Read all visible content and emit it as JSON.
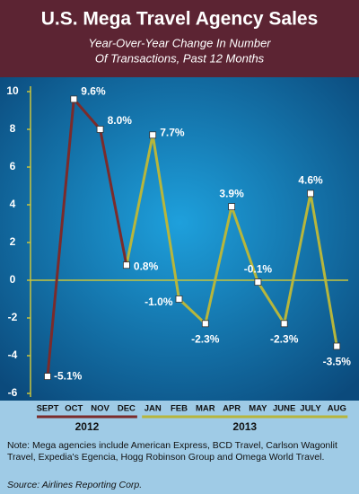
{
  "chart_data": {
    "type": "line",
    "title": "U.S. Mega Travel Agency Sales",
    "subtitle": [
      "Year-Over-Year Change In Number",
      "Of Transactions, Past 12 Months"
    ],
    "categories": [
      "SEPT",
      "OCT",
      "NOV",
      "DEC",
      "JAN",
      "FEB",
      "MAR",
      "APR",
      "MAY",
      "JUNE",
      "JULY",
      "AUG"
    ],
    "series": [
      {
        "name": "2012",
        "color": "#7b2b2b",
        "values": [
          -5.1,
          9.6,
          8.0,
          0.8,
          null,
          null,
          null,
          null,
          null,
          null,
          null,
          null
        ],
        "value_labels": [
          "-5.1%",
          "9.6%",
          "8.0%",
          "0.8%",
          null,
          null,
          null,
          null,
          null,
          null,
          null,
          null
        ]
      },
      {
        "name": "2013",
        "color": "#b7b63c",
        "values": [
          null,
          null,
          null,
          null,
          7.7,
          -1.0,
          -2.3,
          3.9,
          -0.1,
          -2.3,
          4.6,
          -3.5
        ],
        "value_labels": [
          null,
          null,
          null,
          null,
          "7.7%",
          "-1.0%",
          "-2.3%",
          "3.9%",
          "-0.1%",
          "-2.3%",
          "4.6%",
          "-3.5%"
        ]
      }
    ],
    "ylim": [
      -6,
      10
    ],
    "yticks": [
      -6,
      -4,
      -2,
      0,
      2,
      4,
      6,
      8,
      10
    ],
    "note": "Note: Mega agencies include American Express, BCD Travel, Carlson Wagonlit Travel, Expedia's Egencia, Hogg Robinson Group and Omega World Travel.",
    "source": "Source: Airlines Reporting Corp."
  }
}
